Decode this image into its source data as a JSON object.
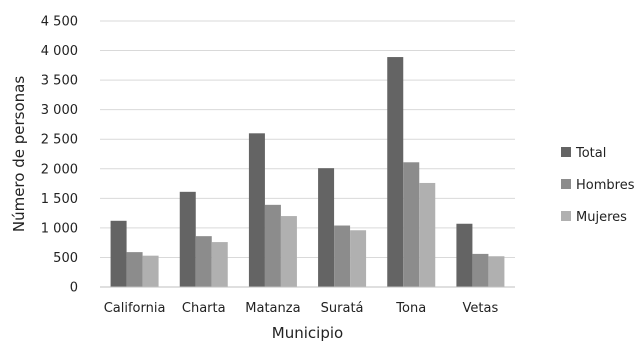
{
  "chart_data": {
    "type": "bar",
    "title": "",
    "xlabel": "Municipio",
    "ylabel": "Número de personas",
    "categories": [
      "California",
      "Charta",
      "Matanza",
      "Suratá",
      "Tona",
      "Vetas"
    ],
    "series": [
      {
        "name": "Total",
        "color": "#646464",
        "values": [
          1120,
          1610,
          2600,
          2010,
          3890,
          1070
        ]
      },
      {
        "name": "Hombres",
        "color": "#8c8c8c",
        "values": [
          590,
          860,
          1390,
          1040,
          2110,
          560
        ]
      },
      {
        "name": "Mujeres",
        "color": "#b0b0b0",
        "values": [
          530,
          760,
          1200,
          960,
          1760,
          520
        ]
      }
    ],
    "ylim": [
      0,
      4500
    ],
    "yticks": [
      0,
      500,
      1000,
      1500,
      2000,
      2500,
      3000,
      3500,
      4000,
      4500
    ],
    "ytick_labels": [
      "0",
      "500",
      "1 000",
      "1 500",
      "2 000",
      "2 500",
      "3 000",
      "3 500",
      "4 000",
      "4 500"
    ],
    "grid": true,
    "legend_position": "right"
  }
}
